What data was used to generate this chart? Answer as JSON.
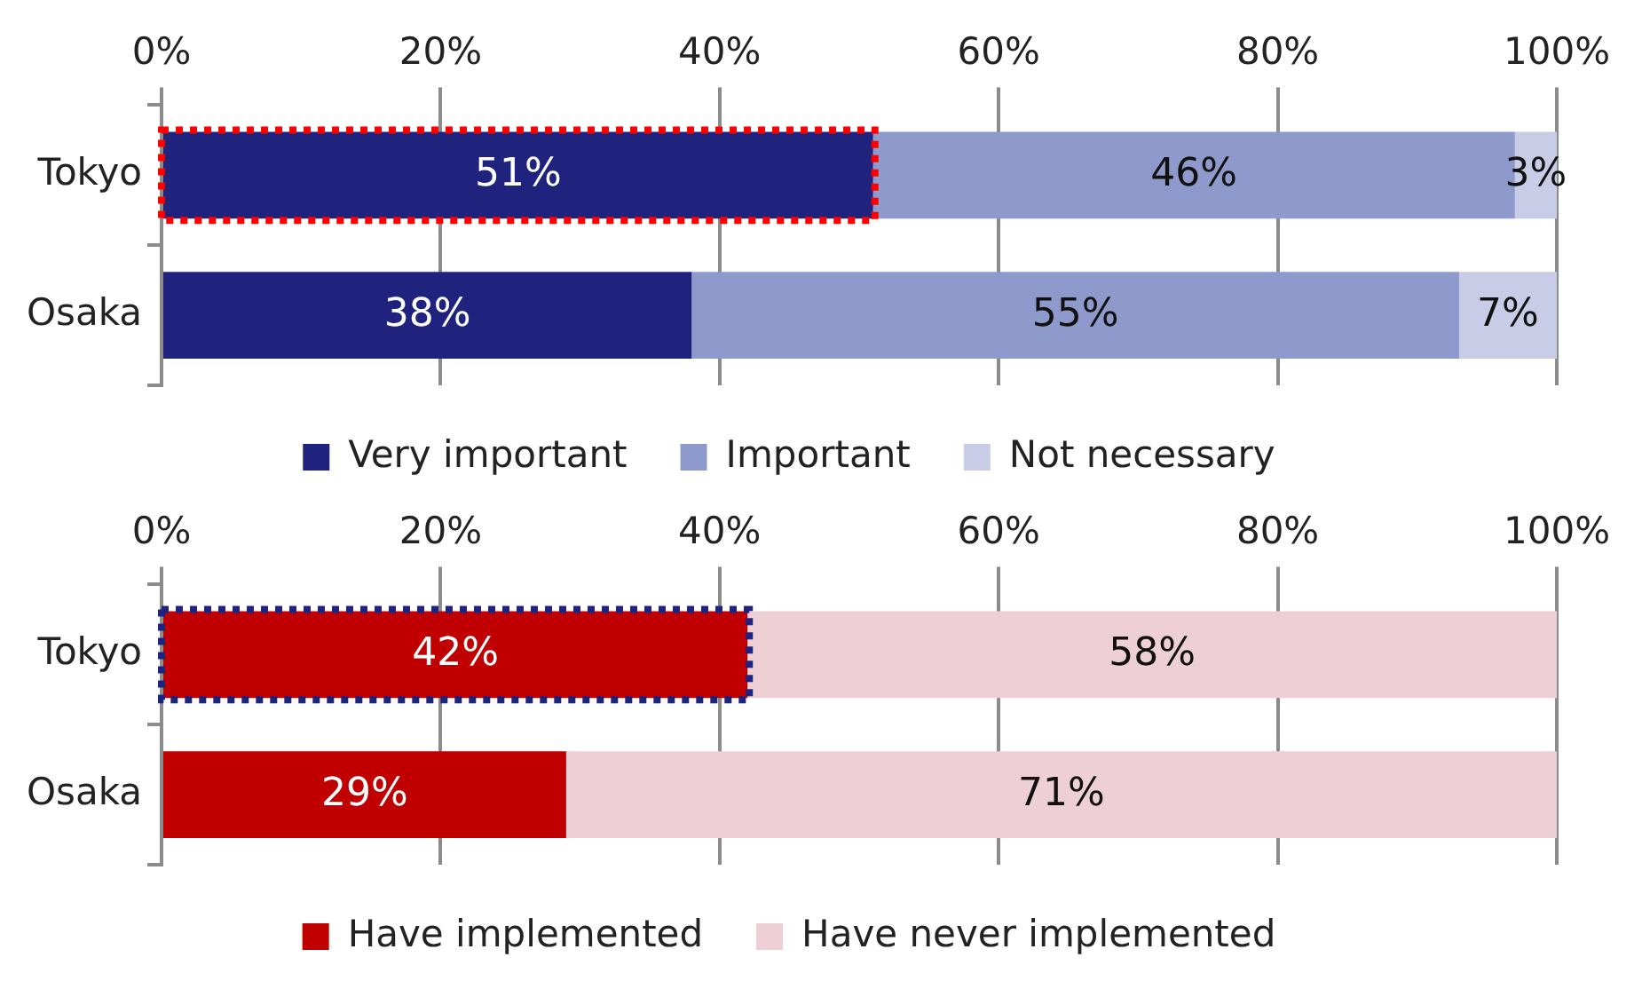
{
  "chart_data": [
    {
      "type": "bar",
      "orientation": "horizontal",
      "stacked": true,
      "categories": [
        "Tokyo",
        "Osaka"
      ],
      "series": [
        {
          "name": "Very important",
          "color": "#1f237e",
          "values": [
            51,
            38
          ],
          "value_labels": [
            "51%",
            "38%"
          ]
        },
        {
          "name": "Important",
          "color": "#8e9acb",
          "values": [
            46,
            55
          ],
          "value_labels": [
            "46%",
            "55%"
          ]
        },
        {
          "name": "Not necessary",
          "color": "#c8cce6",
          "values": [
            3,
            7
          ],
          "value_labels": [
            "3%",
            "7%"
          ]
        }
      ],
      "xlim": [
        0,
        100
      ],
      "xticks": [
        {
          "value": 0,
          "label": "0%"
        },
        {
          "value": 20,
          "label": "20%"
        },
        {
          "value": 40,
          "label": "40%"
        },
        {
          "value": 60,
          "label": "60%"
        },
        {
          "value": 80,
          "label": "80%"
        },
        {
          "value": 100,
          "label": "100%"
        }
      ],
      "grid": "x",
      "legend": "bottom"
    },
    {
      "type": "bar",
      "orientation": "horizontal",
      "stacked": true,
      "categories": [
        "Tokyo",
        "Osaka"
      ],
      "series": [
        {
          "name": "Have implemented",
          "color": "#c00000",
          "values": [
            42,
            29
          ],
          "value_labels": [
            "42%",
            "29%"
          ]
        },
        {
          "name": "Have never implemented",
          "color": "#edcfd5",
          "values": [
            58,
            71
          ],
          "value_labels": [
            "58%",
            "71%"
          ]
        }
      ],
      "xlim": [
        0,
        100
      ],
      "xticks": [
        {
          "value": 0,
          "label": "0%"
        },
        {
          "value": 20,
          "label": "20%"
        },
        {
          "value": 40,
          "label": "40%"
        },
        {
          "value": 60,
          "label": "60%"
        },
        {
          "value": 80,
          "label": "80%"
        },
        {
          "value": 100,
          "label": "100%"
        }
      ],
      "grid": "x",
      "legend": "bottom"
    }
  ]
}
